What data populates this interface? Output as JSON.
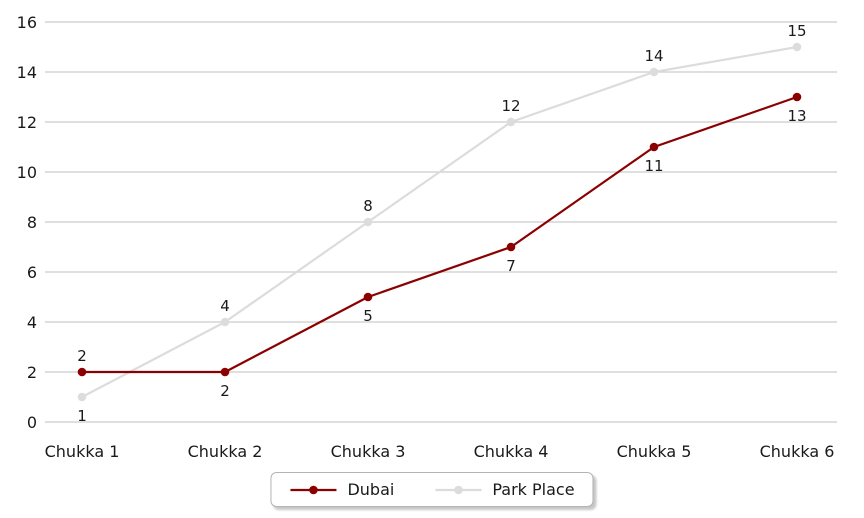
{
  "chart_data": {
    "type": "line",
    "categories": [
      "Chukka 1",
      "Chukka 2",
      "Chukka 3",
      "Chukka 4",
      "Chukka 5",
      "Chukka 6"
    ],
    "series": [
      {
        "name": "Dubai",
        "color": "#8B0000",
        "values": [
          2,
          2,
          5,
          7,
          11,
          13
        ],
        "point_labels": [
          "2",
          "2",
          "5",
          "7",
          "11",
          "13"
        ],
        "label_positions": [
          "above",
          "below",
          "below",
          "below",
          "below",
          "below"
        ]
      },
      {
        "name": "Park Place",
        "color": "#DCDCDC",
        "values": [
          1,
          4,
          8,
          12,
          14,
          15
        ],
        "point_labels": [
          "1",
          "4",
          "8",
          "12",
          "14",
          "15"
        ],
        "label_positions": [
          "below",
          "above",
          "above",
          "above",
          "above",
          "above"
        ]
      }
    ],
    "title": "",
    "xlabel": "",
    "ylabel": "",
    "ylim": [
      0,
      16
    ],
    "yticks": [
      0,
      2,
      4,
      6,
      8,
      10,
      12,
      14,
      16
    ],
    "grid": true,
    "gridline_color": "#CCCCCC",
    "tick_text_color": "#1a1a1a",
    "data_label_color": "#1a1a1a",
    "background_color": "#FFFFFF",
    "legend_position": "bottom"
  }
}
